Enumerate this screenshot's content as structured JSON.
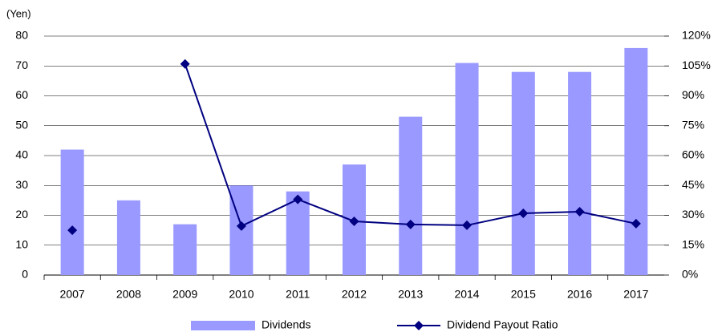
{
  "chart_data": {
    "type": "bar",
    "y_label": "(Yen)",
    "categories": [
      "2007",
      "2008",
      "2009",
      "2010",
      "2011",
      "2012",
      "2013",
      "2014",
      "2015",
      "2016",
      "2017"
    ],
    "series": [
      {
        "name": "Dividends",
        "type": "bar",
        "color": "#9999ff",
        "values": [
          42,
          25,
          17,
          30,
          28,
          37,
          53,
          71,
          68,
          68,
          76
        ]
      },
      {
        "name": "Dividend Payout Ratio",
        "type": "line",
        "axis": "y2",
        "color": "#000080",
        "values": [
          22.5,
          null,
          106,
          24.6,
          38,
          27,
          25.4,
          25,
          31,
          31.8,
          25.8
        ]
      }
    ],
    "ylim": [
      0,
      80
    ],
    "yticks": [
      0,
      10,
      20,
      30,
      40,
      50,
      60,
      70,
      80
    ],
    "y2lim": [
      0,
      120
    ],
    "y2ticks": [
      {
        "value": 0,
        "label": "0%"
      },
      {
        "value": 15,
        "label": "15%"
      },
      {
        "value": 30,
        "label": "30%"
      },
      {
        "value": 45,
        "label": "45%"
      },
      {
        "value": 60,
        "label": "60%"
      },
      {
        "value": 75,
        "label": "75%"
      },
      {
        "value": 90,
        "label": "90%"
      },
      {
        "value": 105,
        "label": "105%"
      },
      {
        "value": 120,
        "label": "120%"
      }
    ],
    "grid": true,
    "legend": "bottom"
  }
}
